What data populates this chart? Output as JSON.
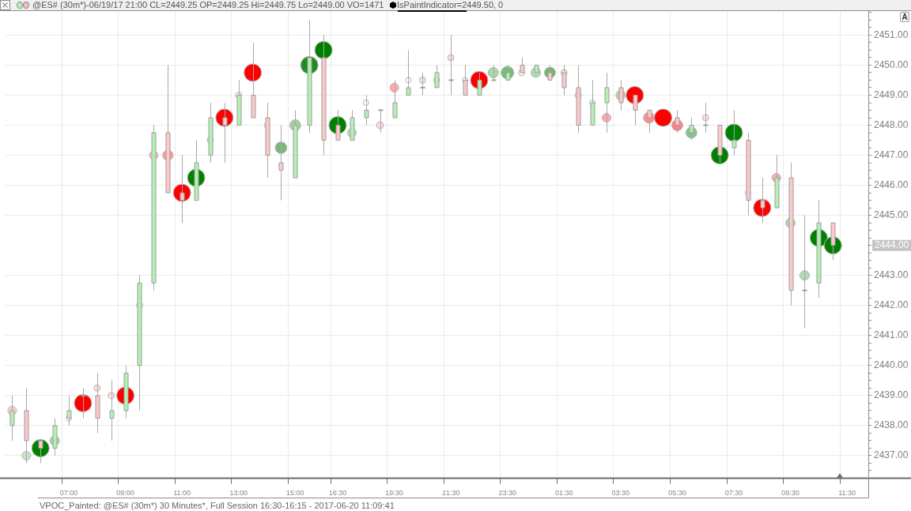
{
  "chart_data": {
    "type": "candlestick",
    "title": "@ES# (30m*)-06/19/17 21:00 CL=2449.25 OP=2449.25 Hi=2449.75 Lo=2449.00 VO=1471",
    "annotations": [
      "IsPaintIndicator=2449.50, 0",
      "VPOC_Painted: @ES# (30m*) 30 Minutes*, Full Session 16:30-16:15 - 2017-06-20 11:09:41",
      "2444.00",
      "A"
    ],
    "categories": [
      null,
      null,
      null,
      null,
      "07:00",
      null,
      null,
      null,
      "09:00",
      null,
      null,
      null,
      "11:00",
      null,
      null,
      null,
      "13:00",
      null,
      null,
      null,
      "15:00",
      null,
      null,
      "16:30",
      null,
      null,
      null,
      "19:30",
      null,
      null,
      null,
      "21:30",
      null,
      null,
      null,
      "23:30",
      null,
      null,
      null,
      "01:30",
      null,
      null,
      null,
      "03:30",
      null,
      null,
      null,
      "05:30",
      null,
      null,
      null,
      "07:30",
      null,
      null,
      null,
      "09:30",
      null,
      null,
      null,
      "11:30",
      null
    ],
    "series": [
      {
        "type": "candlestick",
        "ohlc": [
          [
            2438.0,
            2439.0,
            2437.5,
            2438.5
          ],
          [
            2438.5,
            2439.25,
            2436.75,
            2437.5
          ],
          [
            2437.5,
            2437.5,
            2436.75,
            2437.25
          ],
          [
            2437.25,
            2438.25,
            2437.0,
            2438.0
          ],
          [
            2438.25,
            2439.0,
            2438.0,
            2438.5
          ],
          [
            2439.0,
            2439.25,
            2438.25,
            2439.0
          ],
          [
            2439.0,
            2439.75,
            2437.75,
            2438.25
          ],
          [
            2438.25,
            2439.5,
            2437.5,
            2438.5
          ],
          [
            2438.5,
            2440.0,
            2438.25,
            2439.75
          ],
          [
            2440.0,
            2443.0,
            2438.5,
            2442.75
          ],
          [
            2442.75,
            2448.0,
            2442.5,
            2447.75
          ],
          [
            2447.75,
            2450.0,
            2445.75,
            2445.75
          ],
          [
            2445.75,
            2447.0,
            2444.75,
            2445.5
          ],
          [
            2445.5,
            2447.5,
            2445.5,
            2446.75
          ],
          [
            2447.0,
            2448.75,
            2446.75,
            2448.25
          ],
          [
            2448.25,
            2448.75,
            2446.75,
            2448.0
          ],
          [
            2448.0,
            2449.5,
            2448.0,
            2449.0
          ],
          [
            2449.0,
            2450.75,
            2448.25,
            2448.25
          ],
          [
            2448.25,
            2448.75,
            2446.25,
            2447.0
          ],
          [
            2446.75,
            2448.0,
            2445.5,
            2446.5
          ],
          [
            2446.25,
            2448.5,
            2446.25,
            2448.0
          ],
          [
            2448.0,
            2451.5,
            2447.75,
            2450.25
          ],
          [
            2450.25,
            2451.0,
            2447.0,
            2447.5
          ],
          [
            2448.0,
            2448.5,
            2447.5,
            2447.5
          ],
          [
            2447.5,
            2448.5,
            2447.5,
            2448.25
          ],
          [
            2448.25,
            2449.0,
            2448.0,
            2448.5
          ],
          [
            2448.5,
            2448.5,
            2447.75,
            2448.5
          ],
          [
            2448.25,
            2449.5,
            2448.25,
            2448.75
          ],
          [
            2449.0,
            2450.5,
            2449.0,
            2449.25
          ],
          [
            2449.25,
            2449.75,
            2449.0,
            2449.25
          ],
          [
            2449.25,
            2450.0,
            2449.25,
            2449.75
          ],
          [
            2449.5,
            2451.0,
            2449.0,
            2449.5
          ],
          [
            2449.5,
            2450.0,
            2449.0,
            2449.0
          ],
          [
            2449.0,
            2449.75,
            2449.0,
            2449.5
          ],
          [
            2449.5,
            2450.0,
            2449.5,
            2449.5
          ],
          [
            2449.5,
            2450.0,
            2449.5,
            2449.75
          ],
          [
            2450.0,
            2450.25,
            2449.75,
            2449.75
          ],
          [
            2449.75,
            2450.0,
            2449.75,
            2450.0
          ],
          [
            2449.75,
            2450.0,
            2449.5,
            2449.5
          ],
          [
            2449.75,
            2450.0,
            2449.0,
            2449.25
          ],
          [
            2449.25,
            2450.0,
            2447.75,
            2448.0
          ],
          [
            2448.0,
            2449.5,
            2448.0,
            2448.75
          ],
          [
            2448.75,
            2449.75,
            2447.75,
            2449.25
          ],
          [
            2449.25,
            2449.5,
            2448.5,
            2448.75
          ],
          [
            2449.0,
            2449.0,
            2448.0,
            2448.5
          ],
          [
            2448.5,
            2448.5,
            2447.75,
            2448.25
          ],
          null,
          [
            2448.25,
            2448.5,
            2447.75,
            2448.0
          ],
          [
            2447.75,
            2448.25,
            2447.5,
            2448.0
          ],
          [
            2448.0,
            2448.75,
            2447.75,
            2448.0
          ],
          [
            2448.0,
            2448.0,
            2446.75,
            2447.0
          ],
          [
            2447.25,
            2448.5,
            2447.0,
            2447.5
          ],
          [
            2447.5,
            2447.75,
            2445.0,
            2445.5
          ],
          [
            2445.5,
            2446.25,
            2444.75,
            2445.25
          ],
          [
            2445.25,
            2447.0,
            2445.25,
            2446.25
          ],
          [
            2446.25,
            2446.75,
            2442.0,
            2442.5
          ],
          [
            2442.5,
            2445.0,
            2441.25,
            2442.5
          ],
          [
            2442.75,
            2445.5,
            2442.25,
            2444.75
          ],
          [
            2444.75,
            2444.75,
            2443.5,
            2444.0
          ],
          null,
          null
        ],
        "colors": [
          "#b4f0b4",
          "#ffc8c8",
          "#ffc8c8",
          "#b4f0b4",
          "#b4f0b4",
          "#a0a0a0",
          "#ffc8c8",
          "#b4f0b4",
          "#b4f0b4",
          "#b4f0b4",
          "#b4f0b4",
          "#ffc8c8",
          "#ffc8c8",
          "#b4f0b4",
          "#b4f0b4",
          "#ffc8c8",
          "#b4f0b4",
          "#ffc8c8",
          "#ffc8c8",
          "#ffc8c8",
          "#b4f0b4",
          "#b4f0b4",
          "#ffc8c8",
          "#ffc8c8",
          "#b4f0b4",
          "#b4f0b4",
          "#a0a0a0",
          "#b4f0b4",
          "#b4f0b4",
          "#a0a0a0",
          "#b4f0b4",
          "#a0a0a0",
          "#ffc8c8",
          "#b4f0b4",
          "#a0a0a0",
          "#b4f0b4",
          "#ffc8c8",
          "#b4f0b4",
          "#ffc8c8",
          "#ffc8c8",
          "#ffc8c8",
          "#b4f0b4",
          "#b4f0b4",
          "#ffc8c8",
          "#ffc8c8",
          "#ffc8c8",
          null,
          "#ffc8c8",
          "#b4f0b4",
          "#a0a0a0",
          "#ffc8c8",
          "#b4f0b4",
          "#ffc8c8",
          "#ffc8c8",
          "#b4f0b4",
          "#ffc8c8",
          "#a0a0a0",
          "#b4f0b4",
          "#ffc8c8",
          null,
          null
        ]
      },
      {
        "type": "bubble",
        "values": [
          2438.5,
          2437.0,
          2437.25,
          2437.5,
          2438.25,
          2438.75,
          2439.25,
          2439.0,
          2439.0,
          2442.0,
          2447.0,
          2447.0,
          2445.75,
          2446.25,
          2447.5,
          2448.25,
          2449.0,
          2449.75,
          2448.0,
          2447.25,
          2448.0,
          2450.0,
          2450.5,
          2448.0,
          2447.75,
          2448.75,
          2448.0,
          2449.25,
          2449.5,
          2449.5,
          2449.5,
          2450.25,
          2449.5,
          2449.5,
          2449.75,
          2449.75,
          2449.75,
          2449.75,
          2449.75,
          2449.75,
          2449.0,
          2448.75,
          2448.25,
          2449.0,
          2449.0,
          2448.25,
          2448.25,
          2448.0,
          2447.75,
          2448.25,
          2447.0,
          2447.75,
          2445.75,
          2445.25,
          2446.25,
          2444.75,
          2443.0,
          2444.25,
          2444.0,
          null,
          null
        ],
        "sizes": [
          0.25,
          0.25,
          1,
          0.3,
          0.1,
          1,
          0.13,
          0.13,
          1,
          0.13,
          0.25,
          0.35,
          1,
          1,
          0.13,
          1,
          0.13,
          1,
          0.1,
          0.45,
          0.4,
          1,
          1,
          1,
          0.25,
          0.1,
          0.17,
          0.25,
          0.1,
          0.13,
          0.13,
          0.13,
          0.1,
          1,
          0.35,
          0.53,
          0.13,
          0.3,
          0.4,
          0.13,
          0.13,
          0.1,
          0.25,
          0.3,
          1,
          0.4,
          1,
          0.4,
          0.4,
          0.13,
          1,
          1,
          0.1,
          1,
          0.25,
          0.3,
          0.3,
          1,
          1,
          null,
          null
        ],
        "colors": [
          "#ffcccc",
          "#c8e4c8",
          "#008000",
          "#a8d4a8",
          "#ffffff",
          "#ff0000",
          "#ffe0e0",
          "#ffe0e0",
          "#ff0000",
          "#ffe0e0",
          "#ffbbbb",
          "#ff9999",
          "#ff0000",
          "#008000",
          "#ffe0e0",
          "#ff0000",
          "#ffe0e0",
          "#ff0000",
          "#ffffff",
          "#78b878",
          "#a0d0a0",
          "#228b22",
          "#008000",
          "#008000",
          "#b8dcb8",
          "#ffffff",
          "#ffd6d6",
          "#ffaaaa",
          "#ffffff",
          "#ffe0e0",
          "#e0f0e0",
          "#ffe0e0",
          "#ffffff",
          "#ff0000",
          "#a8d8a8",
          "#78bc78",
          "#eef8ee",
          "#b0dcb0",
          "#70b870",
          "#ffe6e6",
          "#e8f4e8",
          "#ffffff",
          "#ffaaaa",
          "#acd8ac",
          "#ff0000",
          "#ff8c8c",
          "#ff0000",
          "#ff8080",
          "#88c488",
          "#ffe0e0",
          "#008000",
          "#008000",
          "#ffffff",
          "#ff0000",
          "#ffaaaa",
          "#acd8ac",
          "#b0dab0",
          "#008000",
          "#008000",
          null,
          null
        ]
      }
    ],
    "ylim": [
      2436.25,
      2451.8
    ],
    "yticks": [
      {
        "value": 2436.5,
        "label": null
      },
      {
        "value": 2436.75,
        "label": null
      },
      {
        "value": 2437,
        "label": "2437.00"
      },
      {
        "value": 2437.25,
        "label": null
      },
      {
        "value": 2437.5,
        "label": null
      },
      {
        "value": 2437.75,
        "label": null
      },
      {
        "value": 2438,
        "label": "2438.00"
      },
      {
        "value": 2438.25,
        "label": null
      },
      {
        "value": 2438.5,
        "label": null
      },
      {
        "value": 2438.75,
        "label": null
      },
      {
        "value": 2439,
        "label": "2439.00"
      },
      {
        "value": 2439.25,
        "label": null
      },
      {
        "value": 2439.5,
        "label": null
      },
      {
        "value": 2439.75,
        "label": null
      },
      {
        "value": 2440,
        "label": "2440.00"
      },
      {
        "value": 2440.25,
        "label": null
      },
      {
        "value": 2440.5,
        "label": null
      },
      {
        "value": 2440.75,
        "label": null
      },
      {
        "value": 2441,
        "label": "2441.00"
      },
      {
        "value": 2441.25,
        "label": null
      },
      {
        "value": 2441.5,
        "label": null
      },
      {
        "value": 2441.75,
        "label": null
      },
      {
        "value": 2442,
        "label": "2442.00"
      },
      {
        "value": 2442.25,
        "label": null
      },
      {
        "value": 2442.5,
        "label": null
      },
      {
        "value": 2442.75,
        "label": null
      },
      {
        "value": 2443,
        "label": "2443.00"
      },
      {
        "value": 2443.25,
        "label": null
      },
      {
        "value": 2443.5,
        "label": null
      },
      {
        "value": 2443.75,
        "label": null
      },
      {
        "value": 2444,
        "label": null
      },
      {
        "value": 2444.25,
        "label": null
      },
      {
        "value": 2444.5,
        "label": null
      },
      {
        "value": 2444.75,
        "label": null
      },
      {
        "value": 2445,
        "label": "2445.00"
      },
      {
        "value": 2445.25,
        "label": null
      },
      {
        "value": 2445.5,
        "label": null
      },
      {
        "value": 2445.75,
        "label": null
      },
      {
        "value": 2446,
        "label": "2446.00"
      },
      {
        "value": 2446.25,
        "label": null
      },
      {
        "value": 2446.5,
        "label": null
      },
      {
        "value": 2446.75,
        "label": null
      },
      {
        "value": 2447,
        "label": "2447.00"
      },
      {
        "value": 2447.25,
        "label": null
      },
      {
        "value": 2447.5,
        "label": null
      },
      {
        "value": 2447.75,
        "label": null
      },
      {
        "value": 2448,
        "label": "2448.00"
      },
      {
        "value": 2448.25,
        "label": null
      },
      {
        "value": 2448.5,
        "label": null
      },
      {
        "value": 2448.75,
        "label": null
      },
      {
        "value": 2449,
        "label": "2449.00"
      },
      {
        "value": 2449.25,
        "label": null
      },
      {
        "value": 2449.5,
        "label": null
      },
      {
        "value": 2449.75,
        "label": null
      },
      {
        "value": 2450,
        "label": "2450.00"
      },
      {
        "value": 2450.25,
        "label": null
      },
      {
        "value": 2450.5,
        "label": null
      },
      {
        "value": 2450.75,
        "label": null
      },
      {
        "value": 2451,
        "label": "2451.00"
      },
      {
        "value": 2451.25,
        "label": null
      },
      {
        "value": 2451.5,
        "label": null
      },
      {
        "value": 2451.75,
        "label": null
      }
    ],
    "grid": true
  }
}
